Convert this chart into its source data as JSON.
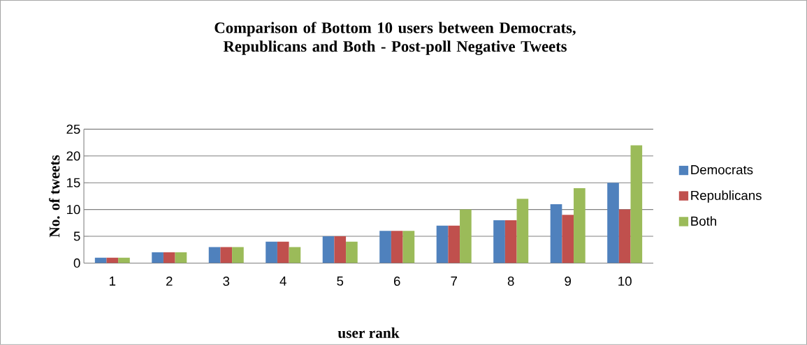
{
  "chart_data": {
    "type": "bar",
    "title": "Comparison of Bottom 10 users between Democrats, Republicans and Both - Post-poll Negative Tweets",
    "xlabel": "user rank",
    "ylabel": "No. of tweets",
    "categories": [
      "1",
      "2",
      "3",
      "4",
      "5",
      "6",
      "7",
      "8",
      "9",
      "10"
    ],
    "series": [
      {
        "name": "Democrats",
        "color": "#4f81bd",
        "values": [
          1,
          2,
          3,
          4,
          5,
          6,
          7,
          8,
          11,
          15
        ]
      },
      {
        "name": "Republicans",
        "color": "#c0504d",
        "values": [
          1,
          2,
          3,
          4,
          5,
          6,
          7,
          8,
          9,
          10
        ]
      },
      {
        "name": "Both",
        "color": "#9bbb59",
        "values": [
          1,
          2,
          3,
          3,
          4,
          6,
          10,
          12,
          14,
          22
        ]
      }
    ],
    "ylim": [
      0,
      25
    ],
    "yticks": [
      0,
      5,
      10,
      15,
      20,
      25
    ],
    "grid": "y",
    "legend": "right"
  }
}
